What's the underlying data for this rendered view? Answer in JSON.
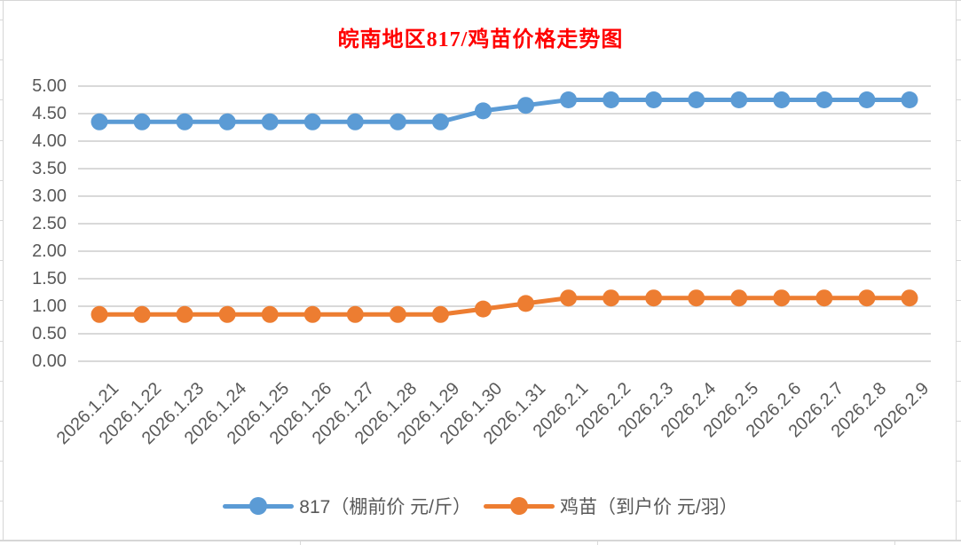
{
  "title": {
    "text": "皖南地区817/鸡苗价格走势图",
    "color": "#FF0000"
  },
  "chart_data": {
    "type": "line",
    "title": "皖南地区817/鸡苗价格走势图",
    "categories": [
      "2026.1.21",
      "2026.1.22",
      "2026.1.23",
      "2026.1.24",
      "2026.1.25",
      "2026.1.26",
      "2026.1.27",
      "2026.1.28",
      "2026.1.29",
      "2026.1.30",
      "2026.1.31",
      "2026.2.1",
      "2026.2.2",
      "2026.2.3",
      "2026.2.4",
      "2026.2.5",
      "2026.2.6",
      "2026.2.7",
      "2026.2.8",
      "2026.2.9"
    ],
    "series": [
      {
        "name": "817（棚前价 元/斤）",
        "color": "#5B9BD5",
        "values": [
          4.35,
          4.35,
          4.35,
          4.35,
          4.35,
          4.35,
          4.35,
          4.35,
          4.35,
          4.55,
          4.65,
          4.75,
          4.75,
          4.75,
          4.75,
          4.75,
          4.75,
          4.75,
          4.75,
          4.75
        ]
      },
      {
        "name": "鸡苗（到户价 元/羽）",
        "color": "#ED7D31",
        "values": [
          0.85,
          0.85,
          0.85,
          0.85,
          0.85,
          0.85,
          0.85,
          0.85,
          0.85,
          0.95,
          1.05,
          1.15,
          1.15,
          1.15,
          1.15,
          1.15,
          1.15,
          1.15,
          1.15,
          1.15
        ]
      }
    ],
    "ylim": [
      0,
      5
    ],
    "ytick_step": 0.5,
    "ytick_decimals": 2,
    "grid": "horizontal",
    "gridline_color": "#D9D9D9",
    "axis_label_color": "#595959",
    "legend_position": "bottom",
    "xlabel": "",
    "ylabel": ""
  }
}
